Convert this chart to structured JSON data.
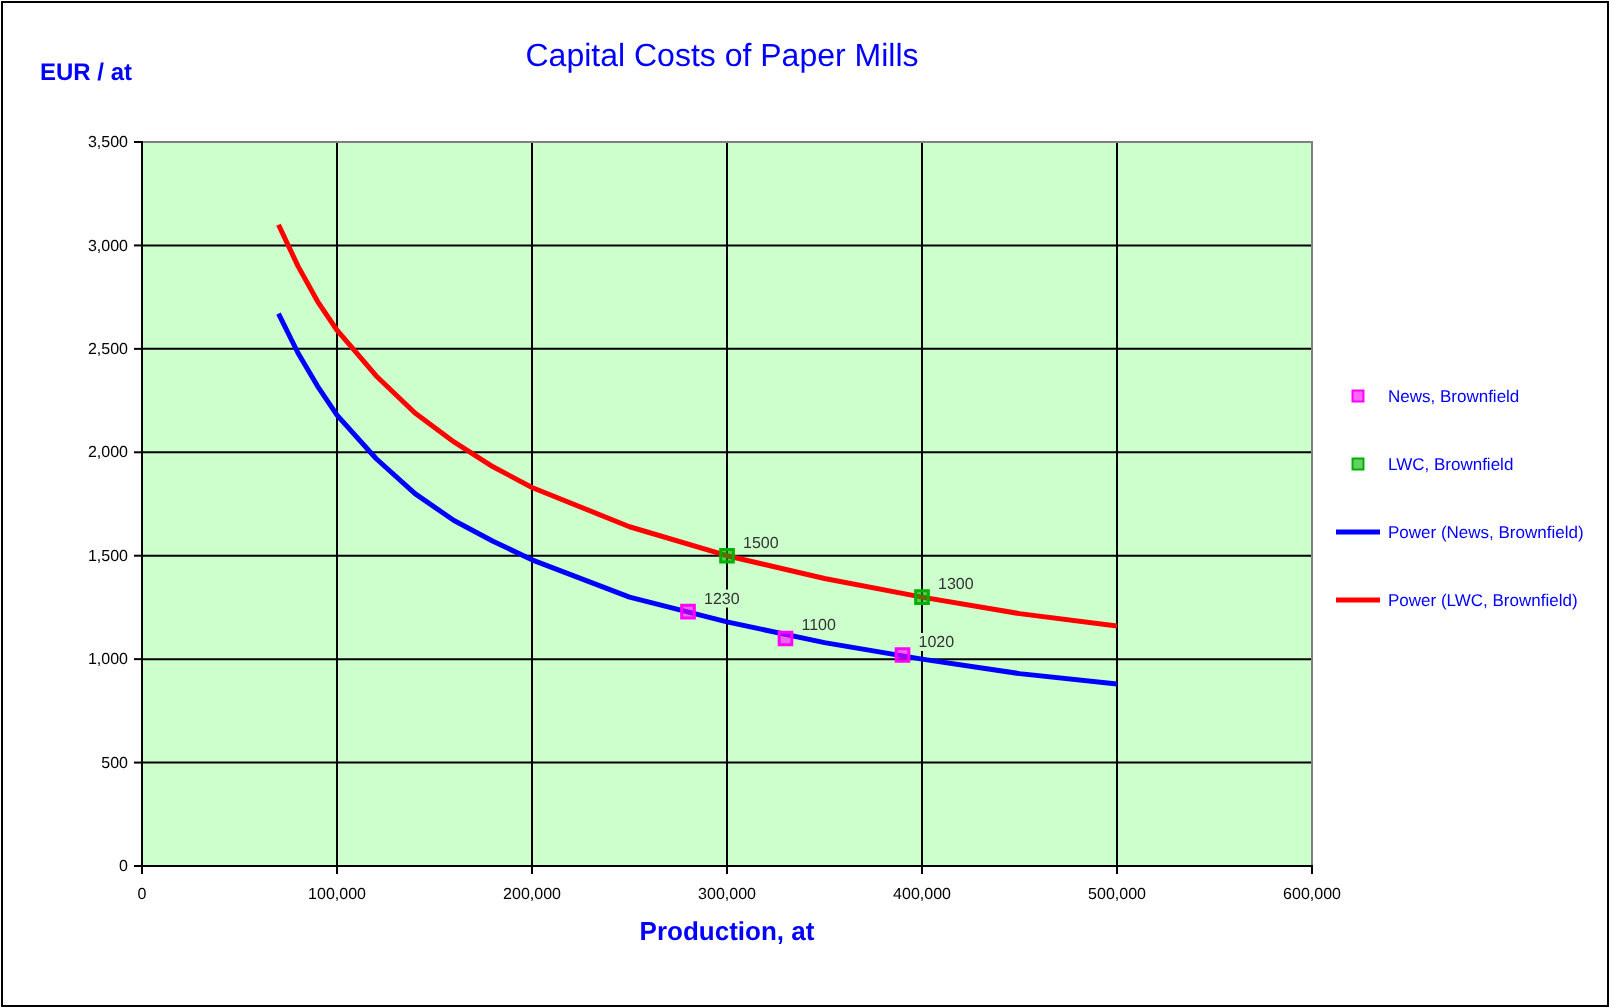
{
  "chart_data": {
    "type": "line",
    "title": "Capital Costs of Paper Mills",
    "xlabel": "Production, at",
    "ylabel": "EUR / at",
    "xlim": [
      0,
      600000
    ],
    "xticks": [
      0,
      {
        "value": 100000,
        "label": "100,000"
      },
      {
        "value": 200000,
        "label": "200,000"
      },
      {
        "value": 300000,
        "label": "300,000"
      },
      {
        "value": 400000,
        "label": "400,000"
      },
      {
        "value": 500000,
        "label": "500,000"
      },
      {
        "value": 600000,
        "label": "600,000"
      }
    ],
    "ylim": [
      0,
      3500
    ],
    "yticks": [
      0,
      500,
      {
        "value": 1000,
        "label": "1,000"
      },
      {
        "value": 1500,
        "label": "1,500"
      },
      {
        "value": 2000,
        "label": "2,000"
      },
      {
        "value": 2500,
        "label": "2,500"
      },
      {
        "value": 3000,
        "label": "3,000"
      },
      {
        "value": 3500,
        "label": "3,500"
      }
    ],
    "grid": true,
    "legend": "right",
    "series": [
      {
        "name": "News, Brownfield",
        "type": "scatter",
        "marker": "square",
        "color": "#ff00ff",
        "x": [
          280000,
          330000,
          390000
        ],
        "values": [
          1230,
          1100,
          1020
        ],
        "value_labels": [
          "1230",
          "1100",
          "1020"
        ]
      },
      {
        "name": "LWC, Brownfield",
        "type": "scatter",
        "marker": "square",
        "color": "#00b000",
        "x": [
          300000,
          400000
        ],
        "values": [
          1500,
          1300
        ],
        "value_labels": [
          "1500",
          "1300"
        ]
      },
      {
        "name": "Power (News, Brownfield)",
        "color": "#0000ff",
        "x": [
          70000,
          80000,
          90000,
          100000,
          120000,
          140000,
          160000,
          180000,
          200000,
          250000,
          300000,
          350000,
          400000,
          450000,
          500000
        ],
        "values": [
          2670,
          2480,
          2320,
          2180,
          1970,
          1800,
          1670,
          1570,
          1480,
          1300,
          1180,
          1080,
          1000,
          930,
          880
        ]
      },
      {
        "name": "Power (LWC, Brownfield)",
        "color": "#ff0000",
        "x": [
          70000,
          80000,
          90000,
          100000,
          120000,
          140000,
          160000,
          180000,
          200000,
          250000,
          300000,
          350000,
          400000,
          450000,
          500000
        ],
        "values": [
          3100,
          2900,
          2730,
          2590,
          2370,
          2190,
          2050,
          1930,
          1830,
          1640,
          1500,
          1390,
          1300,
          1220,
          1160
        ]
      }
    ]
  }
}
